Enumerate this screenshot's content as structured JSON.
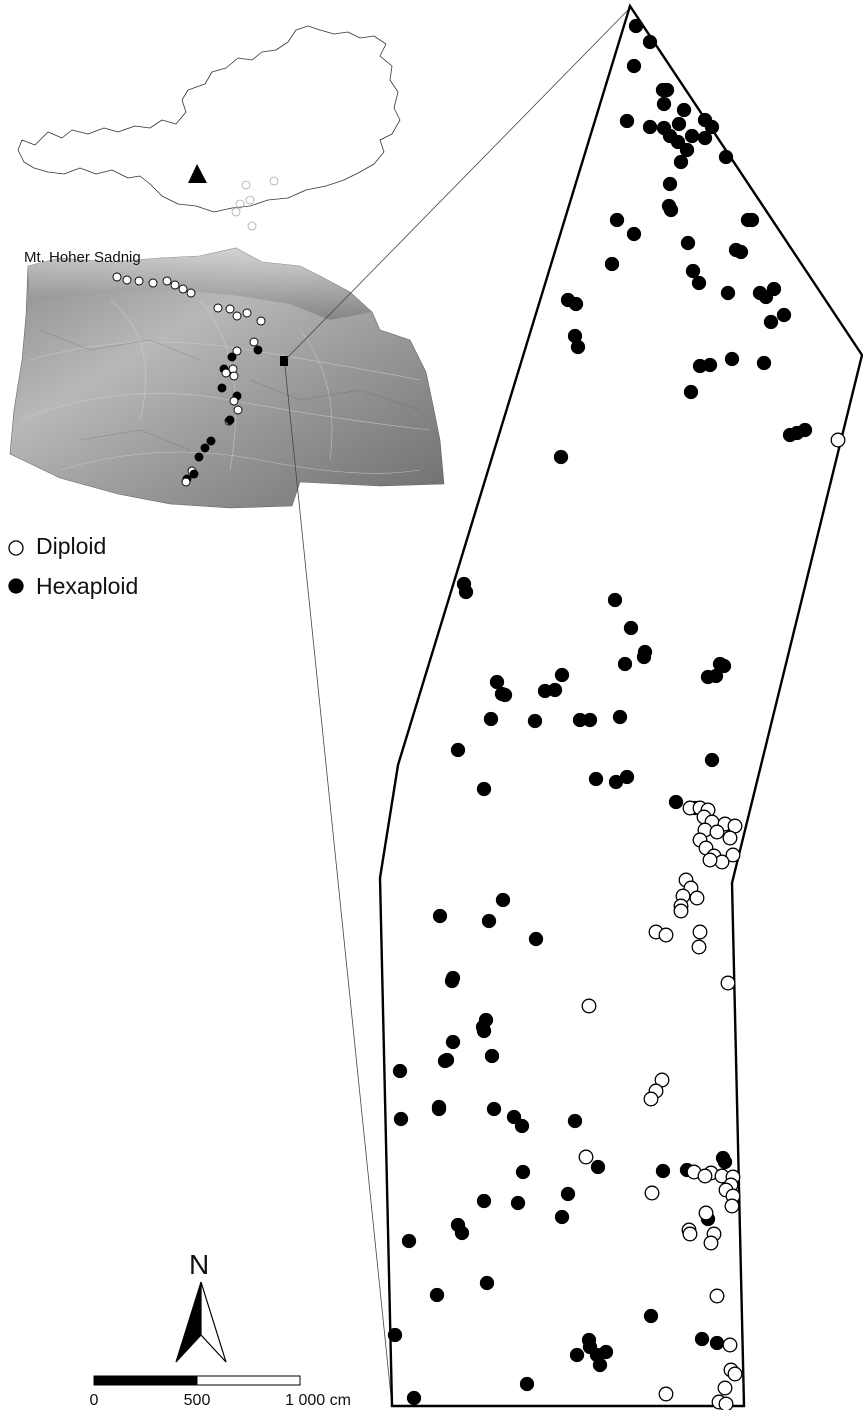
{
  "figure": {
    "inset_label": "Mt. Hoher Sadnig",
    "legend": {
      "items": [
        {
          "symbol": "open-circle",
          "label": "Diploid"
        },
        {
          "symbol": "filled-circle",
          "label": "Hexaploid"
        }
      ]
    },
    "north_arrow": {
      "label": "N"
    },
    "scale_bar": {
      "ticks": [
        "0",
        "500",
        "1 000 cm"
      ]
    },
    "colors": {
      "diploid_fill": "#ffffff",
      "hexaploid_fill": "#000000",
      "outline": "#000000"
    }
  }
}
